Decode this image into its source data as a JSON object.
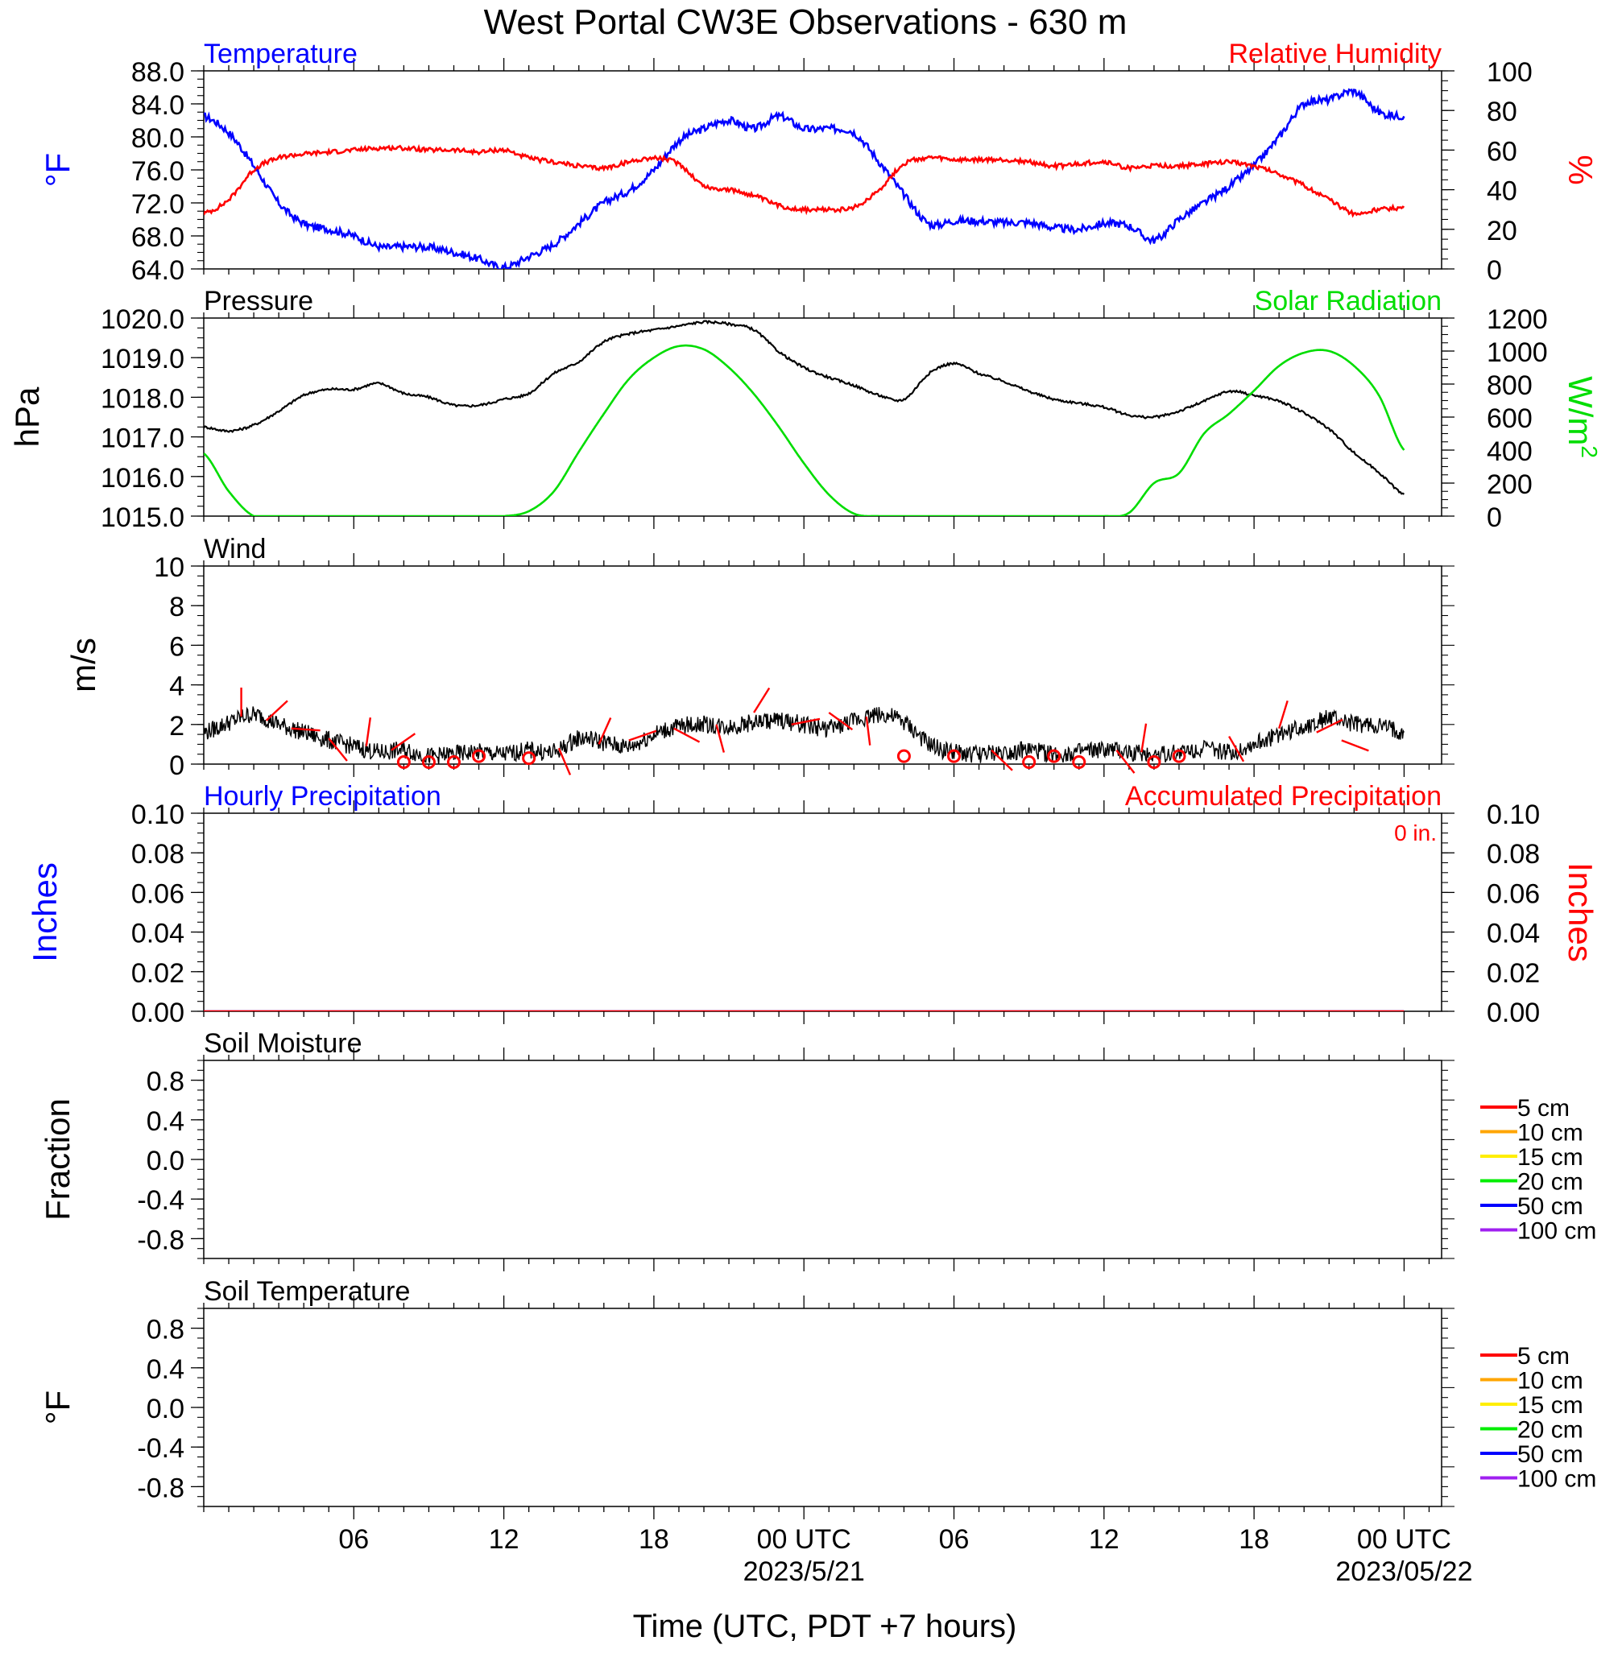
{
  "title": "West Portal CW3E Observations - 630 m",
  "x_axis": {
    "title": "Time (UTC, PDT +7 hours)",
    "ticks": [
      {
        "hour": 6,
        "label": "06",
        "sub": ""
      },
      {
        "hour": 12,
        "label": "12",
        "sub": ""
      },
      {
        "hour": 18,
        "label": "18",
        "sub": ""
      },
      {
        "hour": 24,
        "label": "00 UTC",
        "sub": "2023/5/21"
      },
      {
        "hour": 30,
        "label": "06",
        "sub": ""
      },
      {
        "hour": 36,
        "label": "12",
        "sub": ""
      },
      {
        "hour": 42,
        "label": "18",
        "sub": ""
      },
      {
        "hour": 48,
        "label": "00 UTC",
        "sub": "2023/05/22"
      }
    ]
  },
  "colors": {
    "temperature": "#0000ff",
    "humidity": "#ff0000",
    "pressure": "#000000",
    "solar": "#00dd00",
    "wind": "#000000",
    "barb": "#ff0000",
    "precip_left": "#0000ff",
    "precip_right": "#ff0000"
  },
  "chart_data": [
    {
      "id": "temp_rh",
      "type": "line",
      "title_left": "Temperature",
      "title_right": "Relative Humidity",
      "ylabel_left": "°F",
      "ylabel_right": "%",
      "ylim_left": [
        64,
        88
      ],
      "ylim_right": [
        0,
        100
      ],
      "yticks_left": [
        "64.0",
        "68.0",
        "72.0",
        "76.0",
        "80.0",
        "84.0",
        "88.0"
      ],
      "yticks_right": [
        "0",
        "20",
        "40",
        "60",
        "80",
        "100"
      ],
      "x": [
        0,
        1,
        2,
        3,
        4,
        5,
        6,
        7,
        8,
        9,
        10,
        11,
        12,
        13,
        14,
        15,
        16,
        17,
        18,
        19,
        20,
        21,
        22,
        23,
        24,
        25,
        26,
        27,
        28,
        29,
        30,
        31,
        32,
        33,
        34,
        35,
        36,
        37,
        38,
        39,
        40,
        41,
        42,
        43,
        44,
        45,
        46,
        47,
        48
      ],
      "series": [
        {
          "name": "Temperature",
          "axis": "left",
          "values": [
            82.5,
            80.5,
            76.5,
            72,
            69.5,
            68.8,
            68,
            66.7,
            66.7,
            66.6,
            66,
            65.2,
            64.2,
            65.5,
            67,
            69.5,
            72,
            73.5,
            76,
            79.5,
            81,
            82,
            81,
            82.5,
            81,
            81,
            80.5,
            77,
            73,
            69.5,
            69.8,
            69.8,
            69.6,
            69.6,
            69,
            68.8,
            69.5,
            69.2,
            67.5,
            70,
            72,
            74,
            76.5,
            80,
            84,
            84.5,
            85.5,
            83,
            82.5
          ]
        },
        {
          "name": "Relative Humidity",
          "axis": "right",
          "values": [
            28,
            35,
            50,
            56,
            58,
            59,
            60,
            61,
            61,
            60,
            60,
            59,
            60,
            56,
            54,
            52,
            51,
            54,
            56,
            53,
            42,
            40,
            37,
            32,
            30,
            30,
            31,
            40,
            53,
            56,
            55,
            55,
            55,
            54,
            52,
            53,
            54,
            51,
            52,
            52,
            53,
            54,
            52,
            48,
            42,
            35,
            28,
            30,
            31
          ]
        }
      ]
    },
    {
      "id": "pressure_solar",
      "type": "line",
      "title_left": "Pressure",
      "title_right": "Solar Radiation",
      "ylabel_left": "hPa",
      "ylabel_right": "W/m",
      "ylabel_right_sup": "2",
      "ylim_left": [
        1015,
        1020
      ],
      "ylim_right": [
        0,
        1200
      ],
      "yticks_left": [
        "1015.0",
        "1016.0",
        "1017.0",
        "1018.0",
        "1019.0",
        "1020.0"
      ],
      "yticks_right": [
        "0",
        "200",
        "400",
        "600",
        "800",
        "1000",
        "1200"
      ],
      "x": [
        0,
        1,
        2,
        3,
        4,
        5,
        6,
        7,
        8,
        9,
        10,
        11,
        12,
        13,
        14,
        15,
        16,
        17,
        18,
        19,
        20,
        21,
        22,
        23,
        24,
        25,
        26,
        27,
        28,
        29,
        30,
        31,
        32,
        33,
        34,
        35,
        36,
        37,
        38,
        39,
        40,
        41,
        42,
        43,
        44,
        45,
        46,
        47,
        48
      ],
      "series": [
        {
          "name": "Pressure",
          "axis": "left",
          "values": [
            1017.25,
            1017.15,
            1017.3,
            1017.65,
            1018.05,
            1018.2,
            1018.2,
            1018.35,
            1018.1,
            1018.0,
            1017.8,
            1017.8,
            1017.95,
            1018.1,
            1018.6,
            1018.9,
            1019.4,
            1019.6,
            1019.7,
            1019.8,
            1019.9,
            1019.85,
            1019.7,
            1019.15,
            1018.75,
            1018.5,
            1018.3,
            1018.05,
            1017.95,
            1018.6,
            1018.85,
            1018.6,
            1018.4,
            1018.15,
            1017.95,
            1017.85,
            1017.75,
            1017.55,
            1017.5,
            1017.65,
            1017.9,
            1018.15,
            1018.05,
            1017.9,
            1017.6,
            1017.2,
            1016.6,
            1016.1,
            1015.55
          ]
        },
        {
          "name": "Solar Radiation",
          "axis": "right",
          "values": [
            380,
            150,
            0,
            0,
            0,
            0,
            0,
            0,
            0,
            0,
            0,
            0,
            0,
            30,
            150,
            390,
            620,
            830,
            960,
            1030,
            1010,
            900,
            740,
            540,
            320,
            130,
            15,
            0,
            0,
            0,
            0,
            0,
            0,
            0,
            0,
            0,
            0,
            20,
            200,
            260,
            500,
            620,
            760,
            910,
            990,
            1000,
            910,
            730,
            400
          ]
        }
      ]
    },
    {
      "id": "wind",
      "type": "line",
      "title_left": "Wind",
      "ylabel_left": "m/s",
      "ylim_left": [
        0,
        10
      ],
      "yticks_left": [
        "0",
        "2",
        "4",
        "6",
        "8",
        "10"
      ],
      "x": [
        0,
        1,
        2,
        3,
        4,
        5,
        6,
        7,
        8,
        9,
        10,
        11,
        12,
        13,
        14,
        15,
        16,
        17,
        18,
        19,
        20,
        21,
        22,
        23,
        24,
        25,
        26,
        27,
        28,
        29,
        30,
        31,
        32,
        33,
        34,
        35,
        36,
        37,
        38,
        39,
        40,
        41,
        42,
        43,
        44,
        45,
        46,
        47,
        48
      ],
      "series": [
        {
          "name": "Wind",
          "axis": "left",
          "values": [
            1.6,
            2.1,
            2.5,
            2.0,
            1.6,
            1.2,
            0.9,
            0.6,
            0.7,
            0.4,
            0.5,
            0.6,
            0.5,
            0.7,
            0.6,
            1.3,
            1.1,
            0.9,
            1.5,
            1.9,
            2.0,
            1.9,
            2.1,
            2.2,
            2.0,
            1.8,
            2.2,
            2.5,
            2.1,
            1.0,
            0.6,
            0.5,
            0.6,
            0.7,
            0.5,
            0.6,
            0.7,
            0.6,
            0.5,
            0.6,
            0.8,
            0.6,
            1.0,
            1.5,
            1.9,
            2.3,
            2.0,
            1.9,
            1.6
          ]
        }
      ],
      "barbs": [
        {
          "x": 1.5,
          "speed": 2.4,
          "calm": false
        },
        {
          "x": 2.5,
          "speed": 2.2,
          "calm": false
        },
        {
          "x": 3.5,
          "speed": 1.8,
          "calm": false
        },
        {
          "x": 5,
          "speed": 1.3,
          "calm": false
        },
        {
          "x": 6.5,
          "speed": 0.9,
          "calm": false
        },
        {
          "x": 7.5,
          "speed": 0.7,
          "calm": false
        },
        {
          "x": 8,
          "speed": 0.1,
          "calm": true
        },
        {
          "x": 9,
          "speed": 0.1,
          "calm": true
        },
        {
          "x": 10,
          "speed": 0.1,
          "calm": true
        },
        {
          "x": 11,
          "speed": 0.4,
          "calm": true
        },
        {
          "x": 13,
          "speed": 0.3,
          "calm": true
        },
        {
          "x": 14.2,
          "speed": 0.8,
          "calm": false
        },
        {
          "x": 15.8,
          "speed": 1.0,
          "calm": false
        },
        {
          "x": 17,
          "speed": 1.2,
          "calm": false
        },
        {
          "x": 18.8,
          "speed": 1.8,
          "calm": false
        },
        {
          "x": 20.5,
          "speed": 2.0,
          "calm": false
        },
        {
          "x": 22,
          "speed": 2.6,
          "calm": false
        },
        {
          "x": 23.5,
          "speed": 2.0,
          "calm": false
        },
        {
          "x": 25,
          "speed": 2.6,
          "calm": false
        },
        {
          "x": 26.5,
          "speed": 2.4,
          "calm": false
        },
        {
          "x": 28,
          "speed": 0.4,
          "calm": true
        },
        {
          "x": 30,
          "speed": 0.4,
          "calm": true
        },
        {
          "x": 31.5,
          "speed": 0.7,
          "calm": false
        },
        {
          "x": 33,
          "speed": 0.1,
          "calm": true
        },
        {
          "x": 34,
          "speed": 0.4,
          "calm": true
        },
        {
          "x": 35,
          "speed": 0.1,
          "calm": true
        },
        {
          "x": 36.5,
          "speed": 0.7,
          "calm": false
        },
        {
          "x": 37.5,
          "speed": 0.6,
          "calm": false
        },
        {
          "x": 38,
          "speed": 0.1,
          "calm": true
        },
        {
          "x": 39,
          "speed": 0.4,
          "calm": true
        },
        {
          "x": 41,
          "speed": 1.4,
          "calm": false
        },
        {
          "x": 43,
          "speed": 1.8,
          "calm": false
        },
        {
          "x": 44.5,
          "speed": 1.6,
          "calm": false
        },
        {
          "x": 45.5,
          "speed": 1.2,
          "calm": false
        }
      ]
    },
    {
      "id": "precip",
      "type": "line",
      "title_left": "Hourly Precipitation",
      "title_right": "Accumulated Precipitation",
      "annotation": "0 in.",
      "ylabel_left": "Inches",
      "ylabel_right": "Inches",
      "ylim_left": [
        0,
        0.1
      ],
      "ylim_right": [
        0,
        0.1
      ],
      "yticks_left": [
        "0.00",
        "0.02",
        "0.04",
        "0.06",
        "0.08",
        "0.10"
      ],
      "yticks_right": [
        "0.00",
        "0.02",
        "0.04",
        "0.06",
        "0.08",
        "0.10"
      ],
      "x": [
        0,
        48
      ],
      "series": [
        {
          "name": "Hourly Precipitation",
          "axis": "left",
          "values": [
            0,
            0
          ]
        },
        {
          "name": "Accumulated Precipitation",
          "axis": "right",
          "values": [
            0,
            0
          ]
        }
      ]
    },
    {
      "id": "soil_moisture",
      "type": "line",
      "title_left": "Soil Moisture",
      "ylabel_left": "Fraction",
      "ylim_left": [
        -1,
        1
      ],
      "yticks_left": [
        "-0.8",
        "-0.4",
        "0.0",
        "0.4",
        "0.8"
      ],
      "legend": [
        {
          "label": "5 cm",
          "color": "#ff0000"
        },
        {
          "label": "10 cm",
          "color": "#ffa500"
        },
        {
          "label": "15 cm",
          "color": "#ffee00"
        },
        {
          "label": "20 cm",
          "color": "#00ee00"
        },
        {
          "label": "50 cm",
          "color": "#0000ff"
        },
        {
          "label": "100 cm",
          "color": "#a020f0"
        }
      ]
    },
    {
      "id": "soil_temp",
      "type": "line",
      "title_left": "Soil Temperature",
      "ylabel_left": "°F",
      "ylim_left": [
        -1,
        1
      ],
      "yticks_left": [
        "-0.8",
        "-0.4",
        "0.0",
        "0.4",
        "0.8"
      ],
      "legend": [
        {
          "label": "5 cm",
          "color": "#ff0000"
        },
        {
          "label": "10 cm",
          "color": "#ffa500"
        },
        {
          "label": "15 cm",
          "color": "#ffee00"
        },
        {
          "label": "20 cm",
          "color": "#00ee00"
        },
        {
          "label": "50 cm",
          "color": "#0000ff"
        },
        {
          "label": "100 cm",
          "color": "#a020f0"
        }
      ]
    }
  ]
}
